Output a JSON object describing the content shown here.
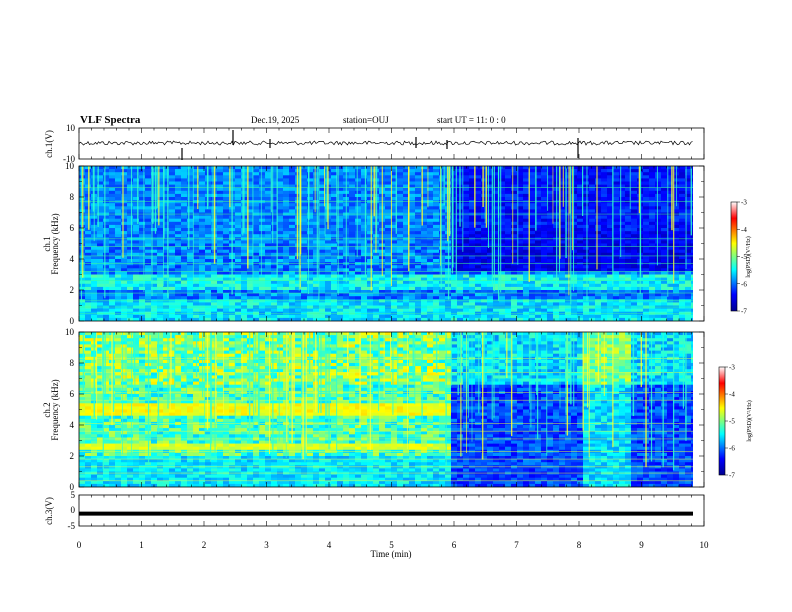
{
  "header": {
    "title": "VLF Spectra",
    "date": "Dec.19, 2025",
    "station": "station=OUJ",
    "start": "start  UT =   11: 0  : 0"
  },
  "chart_data": [
    {
      "type": "line",
      "panel": "ch1-waveform",
      "ylabel": "ch.1(V)",
      "ylim": [
        -10,
        10
      ],
      "yticks": [
        10,
        -10
      ],
      "xlim": [
        0,
        10
      ],
      "note_values": "noisy baseline near +1 V with occasional spikes"
    },
    {
      "type": "heatmap",
      "panel": "ch1-spectrogram",
      "ylabel_line1": "ch.1",
      "ylabel_line2": "Frequency (kHz)",
      "ylim": [
        0,
        10
      ],
      "yticks": [
        0,
        2,
        4,
        6,
        8,
        10
      ],
      "xlim": [
        0,
        10
      ],
      "colorbar": {
        "label": "log(PSD)(V²/Hz)",
        "ticks": [
          -3,
          -4,
          -5,
          -6,
          -7
        ],
        "range": [
          -7,
          -3
        ]
      }
    },
    {
      "type": "heatmap",
      "panel": "ch2-spectrogram",
      "ylabel_line1": "ch.2",
      "ylabel_line2": "Frequency (kHz)",
      "ylim": [
        0,
        10
      ],
      "yticks": [
        0,
        2,
        4,
        6,
        8,
        10
      ],
      "xlim": [
        0,
        10
      ],
      "colorbar": {
        "label": "log(PSD)(V²/Hz)",
        "ticks": [
          -3,
          -4,
          -5,
          -6,
          -7
        ],
        "range": [
          -7,
          -3
        ]
      }
    },
    {
      "type": "line",
      "panel": "ch3-waveform",
      "ylabel": "ch.3(V)",
      "ylim": [
        -5,
        5
      ],
      "yticks": [
        5,
        0,
        -5
      ],
      "xlim": [
        0,
        10
      ],
      "xticks": [
        0,
        1,
        2,
        3,
        4,
        5,
        6,
        7,
        8,
        9,
        10
      ],
      "xlabel": "Time (min)",
      "note_values": "flat thick line near -1 V",
      "level": -1
    }
  ],
  "colors": {
    "jet": [
      "#00008f",
      "#0000ff",
      "#00ffff",
      "#ffff00",
      "#ff0000",
      "#800000"
    ]
  }
}
